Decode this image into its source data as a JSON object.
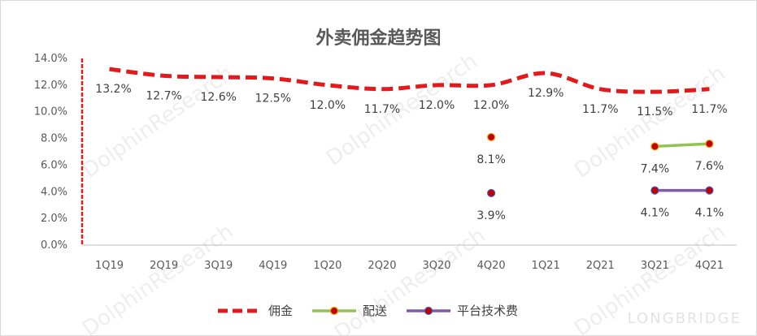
{
  "chart_data": {
    "type": "line",
    "title": "外卖佣金趋势图",
    "categories": [
      "1Q19",
      "2Q19",
      "3Q19",
      "4Q19",
      "1Q20",
      "2Q20",
      "3Q20",
      "4Q20",
      "1Q21",
      "2Q21",
      "3Q21",
      "4Q21"
    ],
    "ylim": [
      0,
      14
    ],
    "yticks": [
      "0.0%",
      "2.0%",
      "4.0%",
      "6.0%",
      "8.0%",
      "10.0%",
      "12.0%",
      "14.0%"
    ],
    "series": [
      {
        "name": "佣金",
        "color": "#e31a1c",
        "style": "dashed",
        "values": [
          13.2,
          12.7,
          12.6,
          12.5,
          12.0,
          11.7,
          12.0,
          12.0,
          12.9,
          11.7,
          11.5,
          11.7
        ],
        "labels": [
          "13.2%",
          "12.7%",
          "12.6%",
          "12.5%",
          "12.0%",
          "11.7%",
          "12.0%",
          "12.0%",
          "12.9%",
          "11.7%",
          "11.5%",
          "11.7%"
        ]
      },
      {
        "name": "配送",
        "color": "#92c353",
        "marker": "#c00000",
        "values": [
          null,
          null,
          null,
          null,
          null,
          null,
          null,
          8.1,
          null,
          null,
          7.4,
          7.6
        ],
        "labels": [
          null,
          null,
          null,
          null,
          null,
          null,
          null,
          "8.1%",
          null,
          null,
          "7.4%",
          "7.6%"
        ]
      },
      {
        "name": "平台技术费",
        "color": "#7e5aa8",
        "marker": "#c00000",
        "values": [
          null,
          null,
          null,
          null,
          null,
          null,
          null,
          3.9,
          null,
          null,
          4.1,
          4.1
        ],
        "labels": [
          null,
          null,
          null,
          null,
          null,
          null,
          null,
          "3.9%",
          null,
          null,
          "4.1%",
          "4.1%"
        ]
      }
    ],
    "grid": false,
    "legend": "bottom"
  },
  "watermark": {
    "text": "DolphinResearch",
    "brand": "LONGBRIDGE"
  }
}
